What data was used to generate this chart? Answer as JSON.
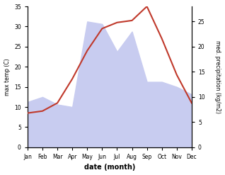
{
  "months": [
    "Jan",
    "Feb",
    "Mar",
    "Apr",
    "May",
    "Jun",
    "Jul",
    "Aug",
    "Sep",
    "Oct",
    "Nov",
    "Dec"
  ],
  "temp": [
    8.5,
    9.0,
    11.0,
    17.0,
    24.0,
    29.5,
    31.0,
    31.5,
    35.0,
    27.0,
    18.0,
    11.0
  ],
  "precip": [
    9.0,
    10.0,
    8.5,
    8.0,
    25.0,
    24.5,
    19.0,
    23.0,
    13.0,
    13.0,
    12.0,
    10.5
  ],
  "temp_color": "#c0392b",
  "precip_fill": "#c8ccf0",
  "temp_ylim": [
    0,
    35
  ],
  "precip_ylim": [
    0,
    28
  ],
  "temp_ylabel": "max temp (C)",
  "precip_ylabel": "med. precipitation (kg/m2)",
  "xlabel": "date (month)",
  "temp_yticks": [
    0,
    5,
    10,
    15,
    20,
    25,
    30,
    35
  ],
  "precip_yticks": [
    0,
    5,
    10,
    15,
    20,
    25
  ],
  "bg_color": "#ffffff"
}
